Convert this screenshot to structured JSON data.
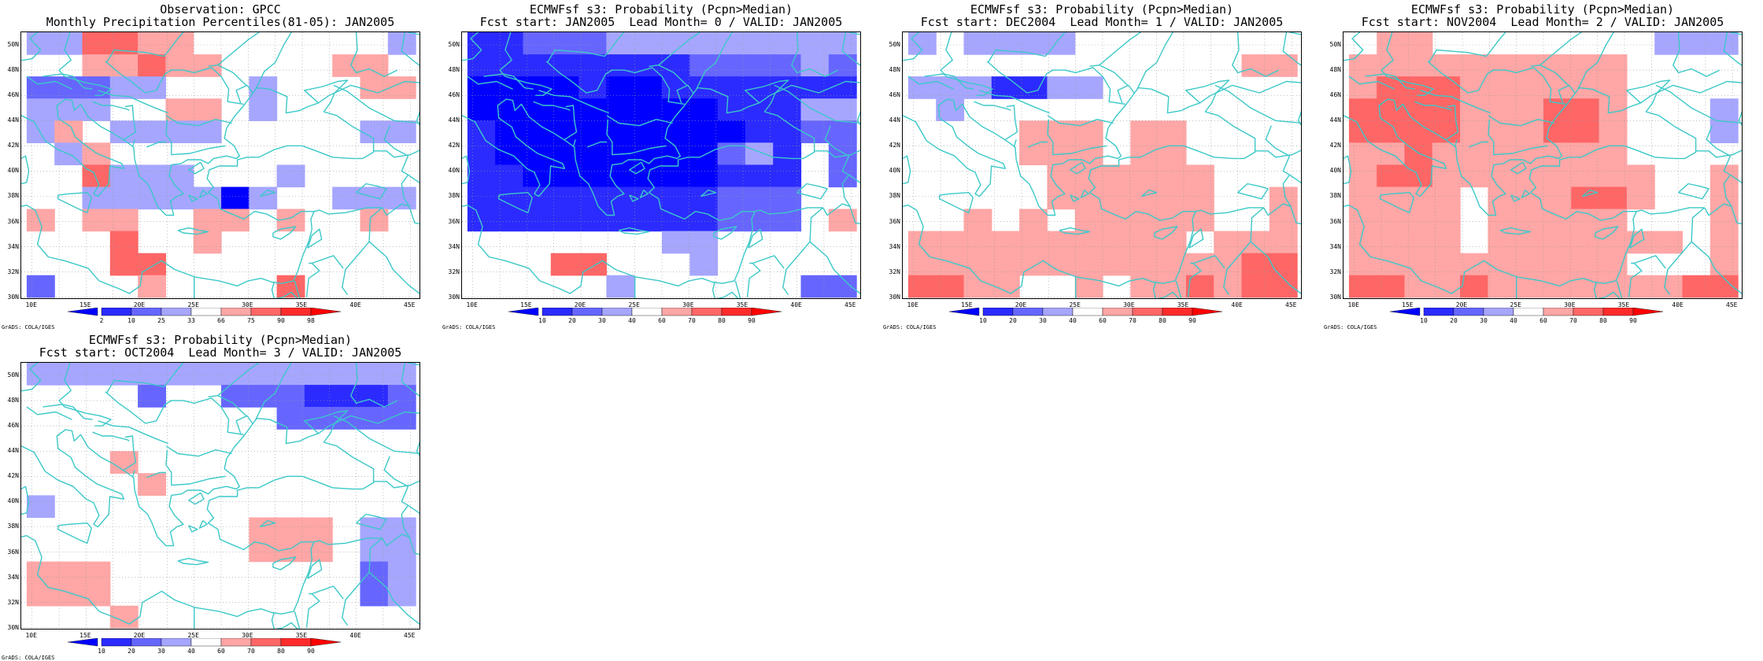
{
  "colors": {
    "coast": "#3cc8c8",
    "grid": "#9a9a9a",
    "levels": [
      "#0000ff",
      "#2b2bff",
      "#6666ff",
      "#a6a6ff",
      "#ffffff",
      "#ffa6a6",
      "#ff6666",
      "#ff2b2b",
      "#ff0000"
    ]
  },
  "map": {
    "lat_labels": [
      "50N",
      "48N",
      "46N",
      "44N",
      "42N",
      "40N",
      "38N",
      "36N",
      "34N",
      "32N",
      "30N"
    ],
    "lon_labels": [
      "10E",
      "15E",
      "20E",
      "25E",
      "30E",
      "35E",
      "40E",
      "45E"
    ],
    "credit": "GrADS: COLA/IGES",
    "lon_range": [
      9,
      46
    ],
    "lat_range": [
      29.8,
      51
    ]
  },
  "panels": [
    {
      "title1": "Observation: GPCC",
      "title2": "Monthly Precipitation Percentiles(81-05): JAN2005",
      "ticks": [
        "2",
        "10",
        "25",
        "33",
        "66",
        "75",
        "90",
        "98"
      ],
      "grid": [
        "44776655555554",
        "55667665555665",
        "33344555455566",
        "44455665455555",
        "46544445555544",
        "54655555555555",
        "55744455545555",
        "55444441455444",
        "65665566565565",
        "55575565555555",
        "55577555555555",
        "35556555575555"
      ]
    },
    {
      "title1": "ECMWFsf s3: Probability (Pcpn>Median)",
      "title2": "Fcst start: JAN2005  Lead Month= 0 / VALID: JAN2005",
      "ticks": [
        "10",
        "20",
        "30",
        "40",
        "60",
        "70",
        "80",
        "90"
      ],
      "grid": [
        "22333444444444",
        "22222222333343",
        "11112112222222",
        "11111111122244",
        "21111111112233",
        "21111111134253",
        "22111111122253",
        "22222222233355",
        "22222222233356",
        "55555554455555",
        "55577555455555",
        "55555455555533"
      ]
    },
    {
      "title1": "ECMWFsf s3: Probability (Pcpn>Median)",
      "title2": "Fcst start: DEC2004  Lead Month= 1 / VALID: JAN2005",
      "ticks": [
        "10",
        "20",
        "30",
        "40",
        "60",
        "70",
        "80",
        "90"
      ],
      "grid": [
        "45444455555555",
        "55555555555566",
        "44422445555555",
        "54555555555555",
        "55556665665555",
        "55556665665555",
        "55555666666555",
        "55555666666556",
        "55656566666556",
        "66666666665666",
        "66666666666677",
        "77665565667677"
      ]
    },
    {
      "title1": "ECMWFsf s3: Probability (Pcpn>Median)",
      "title2": "Fcst start: NOV2004  Lead Month= 2 / VALID: JAN2005",
      "ticks": [
        "10",
        "20",
        "30",
        "40",
        "60",
        "70",
        "80",
        "90"
      ],
      "grid": [
        "56655555555444",
        "66666666665555",
        "67776666665555",
        "77776667765554",
        "77776667765554",
        "66766666665555",
        "67766666666556",
        "66665666776556",
        "66665666665556",
        "66665666666656",
        "66666666665556",
        "77667666666677"
      ]
    },
    {
      "title1": "ECMWFsf s3: Probability (Pcpn>Median)",
      "title2": "Fcst start: OCT2004  Lead Month= 3 / VALID: JAN2005",
      "ticks": [
        "10",
        "20",
        "30",
        "40",
        "60",
        "70",
        "80",
        "90"
      ],
      "grid": [
        "44444444444444",
        "55553553332223",
        "55555555533333",
        "55555555555555",
        "55565555555555",
        "55556555555555",
        "45555555555555",
        "55555555666544",
        "55555555666544",
        "66655555555534",
        "66655555555534",
        "55565555555555"
      ]
    }
  ]
}
